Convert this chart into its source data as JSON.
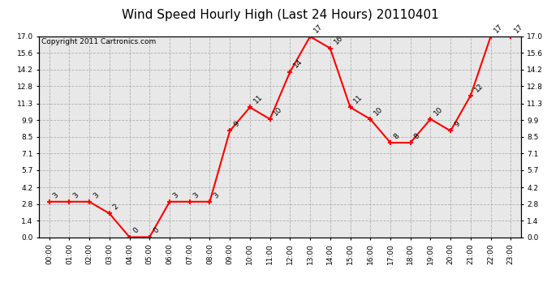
{
  "title": "Wind Speed Hourly High (Last 24 Hours) 20110401",
  "copyright_text": "Copyright 2011 Cartronics.com",
  "hours": [
    "00:00",
    "01:00",
    "02:00",
    "03:00",
    "04:00",
    "05:00",
    "06:00",
    "07:00",
    "08:00",
    "09:00",
    "10:00",
    "11:00",
    "12:00",
    "13:00",
    "14:00",
    "15:00",
    "16:00",
    "17:00",
    "18:00",
    "19:00",
    "20:00",
    "21:00",
    "22:00",
    "23:00"
  ],
  "values": [
    3,
    3,
    3,
    2,
    0,
    0,
    3,
    3,
    3,
    9,
    11,
    10,
    14,
    17,
    16,
    11,
    10,
    8,
    8,
    10,
    9,
    12,
    17,
    17
  ],
  "ylim": [
    0.0,
    17.0
  ],
  "yticks": [
    0.0,
    1.4,
    2.8,
    4.2,
    5.7,
    7.1,
    8.5,
    9.9,
    11.3,
    12.8,
    14.2,
    15.6,
    17.0
  ],
  "line_color": "#ff0000",
  "marker_color": "#ff0000",
  "bg_color": "#ffffff",
  "plot_bg_color": "#e8e8e8",
  "grid_color": "#b0b0b0",
  "title_fontsize": 11,
  "copyright_fontsize": 6.5,
  "label_fontsize": 6.5,
  "tick_fontsize": 6.5,
  "marker_size": 5
}
